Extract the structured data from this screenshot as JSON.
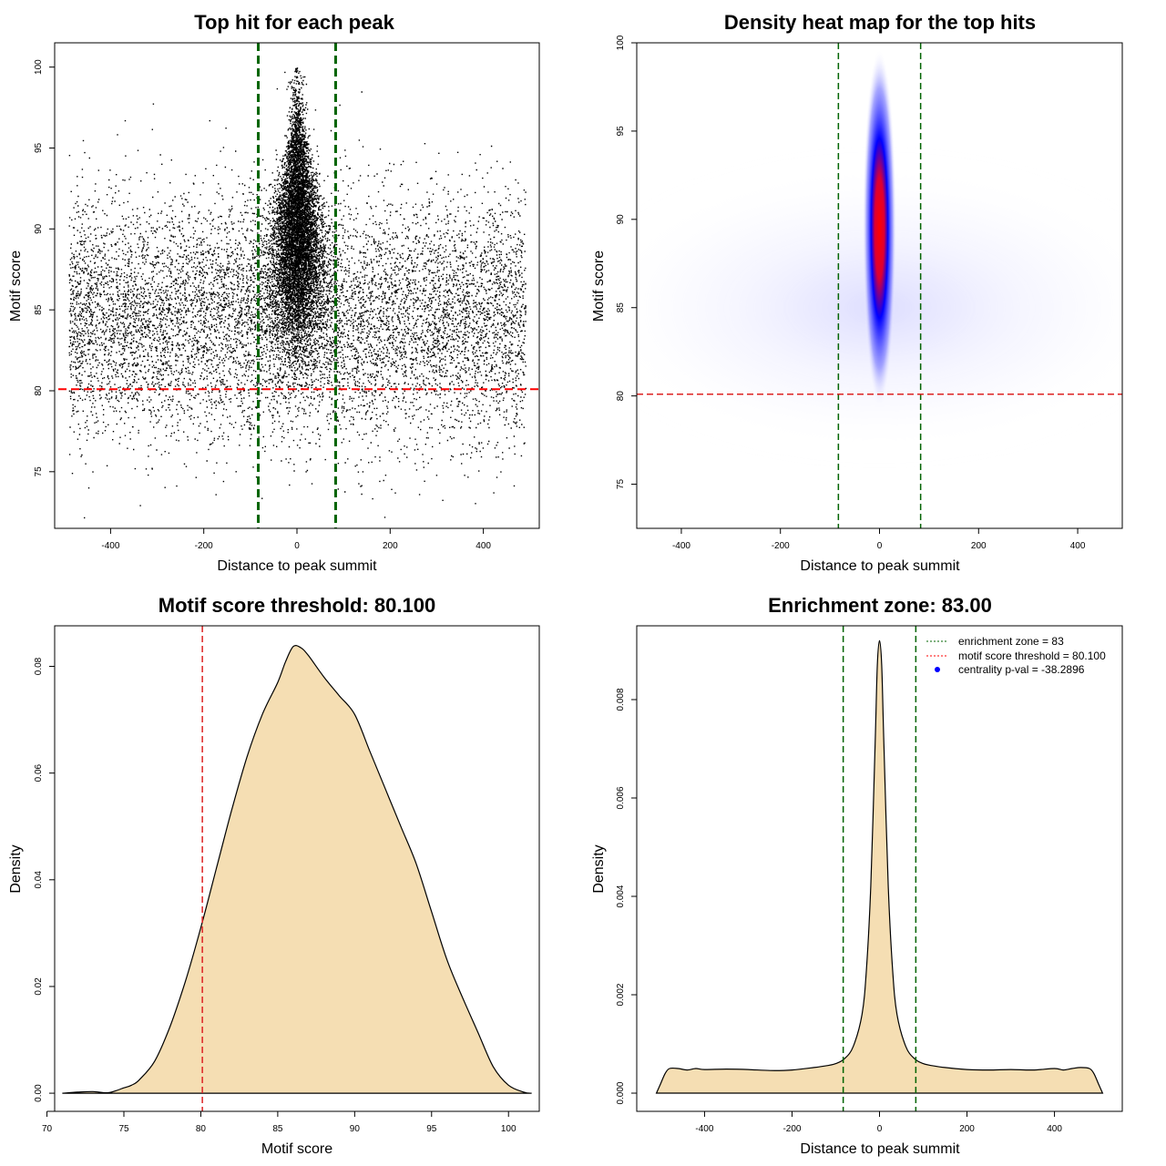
{
  "chart_data": [
    {
      "id": "p1",
      "type": "scatter",
      "title": "Top hit for each peak",
      "xlabel": "Distance to peak summit",
      "ylabel": "Motif score",
      "xlim": [
        -520,
        520
      ],
      "ylim": [
        71.5,
        101.5
      ],
      "xticks": [
        -400,
        -200,
        0,
        200,
        400
      ],
      "yticks": [
        75,
        80,
        85,
        90,
        95,
        100
      ],
      "vlines": [
        -83,
        83
      ],
      "hline": 80.1,
      "points_description_value_range": {
        "x": [
          -490,
          490
        ],
        "y": [
          72,
          100
        ]
      }
    },
    {
      "id": "p2",
      "type": "heatmap",
      "title": "Density heat map for the top hits",
      "xlabel": "Distance to peak summit",
      "ylabel": "Motif score",
      "xlim": [
        -490,
        490
      ],
      "ylim": [
        72.5,
        100
      ],
      "xticks": [
        -400,
        -200,
        0,
        200,
        400
      ],
      "yticks": [
        75,
        80,
        85,
        90,
        95,
        100
      ],
      "vlines": [
        -83,
        83
      ],
      "hline": 80.1,
      "hotspot": {
        "x": 0,
        "y": 89.5
      },
      "colors": {
        "low": "#ffffff",
        "mid": "#0000ff",
        "high": "#ff0000"
      }
    },
    {
      "id": "p3",
      "type": "area",
      "title": "Motif score threshold: 80.100",
      "xlabel": "Motif score",
      "ylabel": "Density",
      "xlim": [
        70.5,
        102
      ],
      "ylim": [
        -0.0034,
        0.0876
      ],
      "xticks": [
        70,
        75,
        80,
        85,
        90,
        95,
        100
      ],
      "yticks": [
        0.0,
        0.02,
        0.04,
        0.06,
        0.08
      ],
      "ytick_labels": [
        "0.00",
        "0.02",
        "0.04",
        "0.06",
        "0.08"
      ],
      "vline": 80.1,
      "x": [
        71,
        72,
        73,
        74,
        75,
        75.5,
        76,
        77,
        78,
        79,
        80,
        81,
        82,
        83,
        84,
        85,
        85.5,
        86,
        86.5,
        87,
        88,
        89,
        90,
        91,
        92,
        93,
        94,
        95,
        96,
        97,
        98,
        99,
        100,
        101,
        101.5
      ],
      "values": [
        0,
        0.0002,
        0.0003,
        0.0001,
        0.001,
        0.0015,
        0.0025,
        0.006,
        0.0125,
        0.021,
        0.031,
        0.042,
        0.053,
        0.063,
        0.071,
        0.077,
        0.0808,
        0.0837,
        0.0835,
        0.082,
        0.078,
        0.0745,
        0.071,
        0.064,
        0.057,
        0.05,
        0.043,
        0.034,
        0.025,
        0.018,
        0.0115,
        0.005,
        0.0015,
        0.0002,
        0
      ]
    },
    {
      "id": "p4",
      "type": "area",
      "title": "Enrichment zone: 83.00",
      "xlabel": "Distance to peak summit",
      "ylabel": "Density",
      "xlim": [
        -555,
        555
      ],
      "ylim": [
        -0.00037,
        0.0095
      ],
      "xticks": [
        -400,
        -200,
        0,
        200,
        400
      ],
      "yticks": [
        0.0,
        0.002,
        0.004,
        0.006,
        0.008
      ],
      "ytick_labels": [
        "0.000",
        "0.002",
        "0.004",
        "0.006",
        "0.008"
      ],
      "vlines": [
        -83,
        83
      ],
      "x": [
        -510,
        -500,
        -490,
        -480,
        -460,
        -440,
        -420,
        -400,
        -350,
        -300,
        -250,
        -200,
        -150,
        -120,
        -100,
        -80,
        -60,
        -40,
        -30,
        -20,
        -10,
        -5,
        0,
        5,
        10,
        20,
        30,
        40,
        60,
        80,
        100,
        120,
        150,
        200,
        250,
        300,
        350,
        400,
        420,
        440,
        460,
        480,
        490,
        500,
        510
      ],
      "values": [
        0,
        0.0002,
        0.0004,
        0.0005,
        0.0005,
        0.00047,
        0.0005,
        0.00048,
        0.00049,
        0.00048,
        0.00046,
        0.00047,
        0.00052,
        0.00056,
        0.0006,
        0.0007,
        0.00095,
        0.0016,
        0.0025,
        0.0042,
        0.0071,
        0.0087,
        0.0092,
        0.0087,
        0.0071,
        0.0042,
        0.0025,
        0.0016,
        0.00095,
        0.0007,
        0.0006,
        0.00056,
        0.00052,
        0.00048,
        0.00047,
        0.00048,
        0.00047,
        0.0005,
        0.00047,
        0.0005,
        0.00052,
        0.0005,
        0.0004,
        0.0002,
        0
      ],
      "legend": [
        {
          "label": "enrichment zone = 83",
          "color": "#006400",
          "style": "dotted-line"
        },
        {
          "label": "motif score threshold = 80.100",
          "color": "#ff0000",
          "style": "dotted-line"
        },
        {
          "label": "centrality p-val = -38.2896",
          "color": "#0000ff",
          "style": "point"
        }
      ],
      "legend_position": "top-right"
    }
  ],
  "colors": {
    "fill": "#f5deb3",
    "green": "#006400",
    "red": "#ff0000",
    "red_dashed": "#dd2222",
    "axis": "#000000"
  }
}
